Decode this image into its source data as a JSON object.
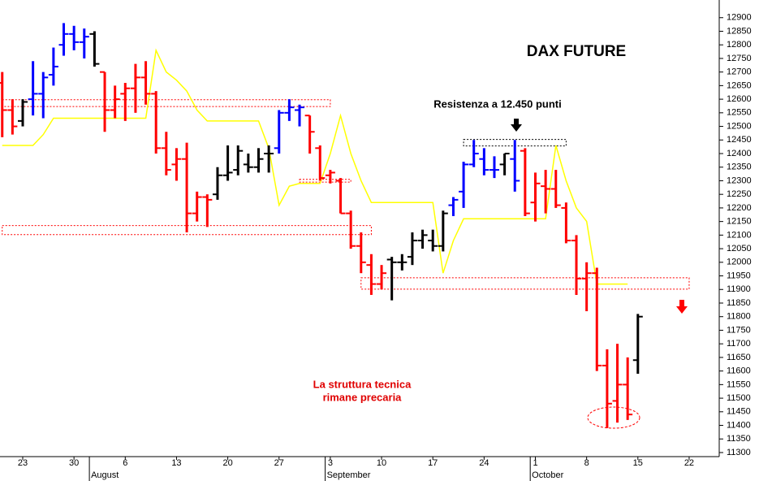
{
  "chart_data": {
    "type": "ohlc",
    "title": "DAX FUTURE",
    "categories": [
      null,
      null,
      "23",
      null,
      null,
      null,
      null,
      "30",
      null,
      null,
      null,
      null,
      "6",
      null,
      null,
      null,
      null,
      "13",
      null,
      null,
      null,
      null,
      "20",
      null,
      null,
      null,
      null,
      "27",
      null,
      null,
      null,
      null,
      "3",
      null,
      null,
      null,
      null,
      "10",
      null,
      null,
      null,
      null,
      "17",
      null,
      null,
      null,
      null,
      "24",
      null,
      null,
      null,
      null,
      "1",
      null,
      null,
      null,
      null,
      "8",
      null,
      null,
      null,
      null,
      "15",
      null,
      null,
      null,
      null,
      "22",
      null,
      null
    ],
    "months": [
      {
        "label": "August",
        "start": 9
      },
      {
        "label": "September",
        "start": 32
      },
      {
        "label": "October",
        "start": 52
      }
    ],
    "open": [
      12660,
      12560,
      12520,
      12600,
      12620,
      12690,
      12800,
      12840,
      12810,
      12840,
      12700,
      12560,
      12620,
      12640,
      12680,
      12620,
      12420,
      12360,
      12380,
      12180,
      12240,
      12250,
      12320,
      12340,
      12360,
      12350,
      12400,
      12420,
      12550,
      12560,
      12540,
      12420,
      12320,
      12300,
      12180,
      12060,
      11990,
      11920,
      12010,
      12000,
      12020,
      12080,
      12080,
      12060,
      12210,
      12260,
      12360,
      12380,
      12340,
      12360,
      12380,
      12410,
      12220,
      12280,
      12270,
      12200,
      12080,
      11940,
      11960,
      11620,
      11490,
      11550,
      11640,
      null,
      null,
      null,
      null,
      null,
      null,
      null
    ],
    "high": [
      12700,
      12600,
      12600,
      12740,
      12700,
      12790,
      12880,
      12870,
      12860,
      12850,
      12700,
      12650,
      12660,
      12730,
      12740,
      12630,
      12480,
      12420,
      12440,
      12260,
      12250,
      12350,
      12430,
      12430,
      12400,
      12420,
      12430,
      12560,
      12600,
      12580,
      12540,
      12430,
      12340,
      12310,
      12190,
      12110,
      12030,
      11990,
      12020,
      12030,
      12110,
      12120,
      12120,
      12190,
      12240,
      12370,
      12450,
      12420,
      12390,
      12400,
      12450,
      12420,
      12330,
      12340,
      12340,
      12220,
      12100,
      12000,
      11980,
      11680,
      11700,
      11650,
      11810,
      null,
      null,
      null,
      null,
      null,
      null,
      null
    ],
    "low": [
      12460,
      12470,
      12500,
      12540,
      12530,
      12650,
      12760,
      12780,
      12750,
      12720,
      12480,
      12530,
      12520,
      12550,
      12580,
      12400,
      12320,
      12300,
      12110,
      12150,
      12130,
      12230,
      12300,
      12320,
      12330,
      12330,
      12330,
      12400,
      12520,
      12500,
      12400,
      12300,
      12290,
      12180,
      12050,
      11960,
      11880,
      11900,
      11860,
      11970,
      11990,
      12050,
      12040,
      12040,
      12170,
      12200,
      12350,
      12320,
      12310,
      12320,
      12260,
      12170,
      12150,
      12180,
      12200,
      12070,
      11880,
      11820,
      11600,
      11390,
      11410,
      11420,
      11590,
      null,
      null,
      null,
      null,
      null,
      null,
      null
    ],
    "close": [
      12560,
      12500,
      12590,
      12620,
      12680,
      12720,
      12840,
      12810,
      12830,
      12730,
      12560,
      12600,
      12640,
      12680,
      12620,
      12420,
      12340,
      12380,
      12180,
      12240,
      12230,
      12320,
      12330,
      12410,
      12350,
      12380,
      12400,
      12550,
      12570,
      12570,
      12480,
      12310,
      12330,
      12180,
      12060,
      12000,
      11920,
      11960,
      12000,
      12000,
      12080,
      12100,
      12060,
      12180,
      12230,
      12360,
      12400,
      12340,
      12340,
      12400,
      12300,
      12180,
      12290,
      12270,
      12210,
      12080,
      11940,
      11960,
      11620,
      11480,
      11550,
      11440,
      11800,
      null,
      null,
      null,
      null,
      null,
      null,
      null
    ],
    "bar_colors": [
      "#ff0000",
      "#ff0000",
      "#000000",
      "#0000ff",
      "#0000ff",
      "#0000ff",
      "#0000ff",
      "#0000ff",
      "#0000ff",
      "#000000",
      "#ff0000",
      "#ff0000",
      "#ff0000",
      "#ff0000",
      "#ff0000",
      "#ff0000",
      "#ff0000",
      "#ff0000",
      "#ff0000",
      "#ff0000",
      "#ff0000",
      "#000000",
      "#000000",
      "#000000",
      "#000000",
      "#000000",
      "#000000",
      "#0000ff",
      "#0000ff",
      "#0000ff",
      "#ff0000",
      "#ff0000",
      "#ff0000",
      "#ff0000",
      "#ff0000",
      "#ff0000",
      "#ff0000",
      "#ff0000",
      "#000000",
      "#000000",
      "#000000",
      "#000000",
      "#000000",
      "#000000",
      "#0000ff",
      "#0000ff",
      "#0000ff",
      "#0000ff",
      "#0000ff",
      "#000000",
      "#0000ff",
      "#ff0000",
      "#ff0000",
      "#ff0000",
      "#ff0000",
      "#ff0000",
      "#ff0000",
      "#ff0000",
      "#ff0000",
      "#ff0000",
      "#ff0000",
      "#ff0000",
      "#000000",
      null,
      null,
      null,
      null,
      null,
      null,
      null
    ],
    "lines": [
      {
        "color": "#ffff00",
        "values": [
          12430,
          12430,
          12430,
          12430,
          12470,
          12530,
          12530,
          12530,
          12530,
          12530,
          12530,
          12530,
          12530,
          12530,
          12530,
          12780,
          12700,
          12670,
          12630,
          12560,
          12520,
          12520,
          12520,
          12520,
          12520,
          12520,
          12420,
          12210,
          12280,
          12290,
          12290,
          12290,
          12400,
          12540,
          12400,
          12300,
          12220,
          12220,
          12220,
          12220,
          12220,
          12220,
          12220,
          11960,
          12080,
          12160,
          12160,
          12160,
          12160,
          12160,
          12160,
          12160,
          12160,
          12160,
          12430,
          12300,
          12200,
          12150,
          11920,
          11920,
          11920,
          11920,
          null,
          null,
          null,
          null,
          null,
          null,
          null,
          null
        ]
      }
    ],
    "zones": [
      {
        "low": 12573,
        "high": 12598,
        "from": 0,
        "to": 32,
        "color": "#ff0000"
      },
      {
        "low": 12295,
        "high": 12305,
        "from": 29,
        "to": 34,
        "color": "#ff0000"
      },
      {
        "low": 12102,
        "high": 12135,
        "from": 0,
        "to": 36,
        "color": "#ff0000"
      },
      {
        "low": 12428,
        "high": 12452,
        "from": 45,
        "to": 55,
        "color": "#000000"
      },
      {
        "low": 11901,
        "high": 11943,
        "from": 35,
        "to": 67,
        "color": "#ff0000"
      }
    ],
    "annotations": [
      {
        "text": "Resistenza a 12.450 punti"
      },
      {
        "text": [
          "La struttura tecnica",
          "rimane precaria"
        ]
      }
    ],
    "ylim": [
      11285,
      12965
    ],
    "yticks": [
      11300,
      11350,
      11400,
      11450,
      11500,
      11550,
      11600,
      11650,
      11700,
      11750,
      11800,
      11850,
      11900,
      11950,
      12000,
      12050,
      12100,
      12150,
      12200,
      12250,
      12300,
      12350,
      12400,
      12450,
      12500,
      12550,
      12600,
      12650,
      12700,
      12750,
      12800,
      12850,
      12900
    ],
    "grid": false
  }
}
